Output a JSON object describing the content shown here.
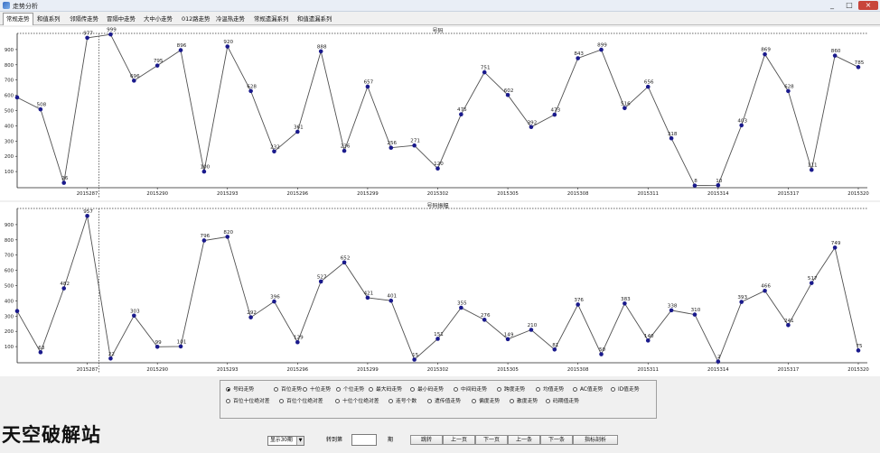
{
  "window": {
    "title": "走势分析",
    "controls": [
      "_",
      "□",
      "×"
    ]
  },
  "tabs": [
    {
      "label": "常规走势",
      "active": true
    },
    {
      "label": "和值系列"
    },
    {
      "label": "邻隔传走势"
    },
    {
      "label": "冒隔中走势"
    },
    {
      "label": "大中小走势"
    },
    {
      "label": "012路走势"
    },
    {
      "label": "冷温热走势"
    },
    {
      "label": "常规遗漏系列"
    },
    {
      "label": "和值遗漏系列"
    }
  ],
  "chart_data": [
    {
      "type": "line",
      "title": "号码",
      "x": [
        "2015284",
        "2015285",
        "2015286",
        "2015287",
        "2015288",
        "2015289",
        "2015290",
        "2015291",
        "2015292",
        "2015293",
        "2015294",
        "2015295",
        "2015296",
        "2015297",
        "2015298",
        "2015299",
        "2015300",
        "2015301",
        "2015302",
        "2015303",
        "2015304",
        "2015305",
        "2015306",
        "2015307",
        "2015308",
        "2015309",
        "2015310",
        "2015311",
        "2015312",
        "2015313",
        "2015314",
        "2015315",
        "2015316",
        "2015317",
        "2015318",
        "2015319",
        "2015320"
      ],
      "x_tick_labels": [
        "2015287",
        "2015290",
        "2015293",
        "2015296",
        "2015299",
        "2015302",
        "2015305",
        "2015308",
        "2015311",
        "2015314",
        "2015317",
        "2015320"
      ],
      "values": [
        586,
        508,
        26,
        977,
        999,
        696,
        795,
        896,
        100,
        920,
        628,
        232,
        361,
        888,
        236,
        657,
        256,
        271,
        120,
        475,
        751,
        602,
        392,
        473,
        843,
        899,
        516,
        656,
        318,
        8,
        10,
        403,
        869,
        628,
        111,
        860,
        785
      ],
      "value_labels": [
        "",
        "508",
        "26",
        "977",
        "999",
        "696",
        "795",
        "896",
        "100",
        "920",
        "628",
        "232",
        "361",
        "888",
        "236",
        "657",
        "256",
        "271",
        "120",
        "475",
        "751",
        "602",
        "392",
        "473",
        "843",
        "899",
        "516",
        "656",
        "318",
        "8",
        "10",
        "403",
        "869",
        "628",
        "111",
        "860",
        "785"
      ],
      "ylim": [
        0,
        1000
      ],
      "y_ticks": [
        100,
        200,
        300,
        400,
        500,
        600,
        700,
        800,
        900
      ],
      "divider_after": "2015287"
    },
    {
      "type": "line",
      "title": "号码振幅",
      "x": [
        "2015284",
        "2015285",
        "2015286",
        "2015287",
        "2015288",
        "2015289",
        "2015290",
        "2015291",
        "2015292",
        "2015293",
        "2015294",
        "2015295",
        "2015296",
        "2015297",
        "2015298",
        "2015299",
        "2015300",
        "2015301",
        "2015302",
        "2015303",
        "2015304",
        "2015305",
        "2015306",
        "2015307",
        "2015308",
        "2015309",
        "2015310",
        "2015311",
        "2015312",
        "2015313",
        "2015314",
        "2015315",
        "2015316",
        "2015317",
        "2015318",
        "2015319",
        "2015320"
      ],
      "x_tick_labels": [
        "2015287",
        "2015290",
        "2015293",
        "2015296",
        "2015299",
        "2015302",
        "2015305",
        "2015308",
        "2015311",
        "2015314",
        "2015317",
        "2015320"
      ],
      "values": [
        333,
        63,
        482,
        957,
        22,
        303,
        99,
        101,
        796,
        820,
        292,
        396,
        129,
        527,
        652,
        421,
        401,
        15,
        151,
        355,
        276,
        149,
        210,
        81,
        376,
        50,
        383,
        140,
        338,
        310,
        2,
        393,
        466,
        241,
        517,
        749,
        75
      ],
      "value_labels": [
        "",
        "63",
        "482",
        "957",
        "22",
        "303",
        "99",
        "101",
        "796",
        "820",
        "292",
        "396",
        "129",
        "527",
        "652",
        "421",
        "401",
        "15",
        "151",
        "355",
        "276",
        "149",
        "210",
        "81",
        "376",
        "50",
        "383",
        "140",
        "338",
        "310",
        "2",
        "393",
        "466",
        "241",
        "517",
        "749",
        "75"
      ],
      "ylim": [
        0,
        1000
      ],
      "y_ticks": [
        100,
        200,
        300,
        400,
        500,
        600,
        700,
        800,
        900
      ],
      "divider_after": "2015287"
    }
  ],
  "options": {
    "row1": [
      {
        "label": "号码走势",
        "selected": true
      },
      {
        "label": "百位走势"
      },
      {
        "label": "十位走势"
      },
      {
        "label": "个位走势"
      },
      {
        "label": "最大码走势"
      },
      {
        "label": "最小码走势"
      },
      {
        "label": "中间码走势"
      },
      {
        "label": "跨度走势"
      },
      {
        "label": "均值走势"
      },
      {
        "label": "AC值走势"
      },
      {
        "label": "ID值走势"
      }
    ],
    "row2": [
      {
        "label": "百位十位绝对差"
      },
      {
        "label": "百位个位绝对差"
      },
      {
        "label": "十位个位绝对差"
      },
      {
        "label": "连号个数"
      },
      {
        "label": "遗传值走势"
      },
      {
        "label": "偏度走势"
      },
      {
        "label": "散度走势"
      },
      {
        "label": "码期值走势"
      }
    ]
  },
  "bottom": {
    "period_select": "显示30期",
    "goto_label": "转到第",
    "period_suffix": "期",
    "goto_value": "",
    "buttons": [
      "跳转",
      "上一页",
      "下一页",
      "上一条",
      "下一条",
      "指标剖析"
    ]
  },
  "watermark": "天空破解站",
  "colors": {
    "line": "#505050",
    "point": "#1a1a8c",
    "divider": "#333333",
    "axis": "#222222"
  }
}
